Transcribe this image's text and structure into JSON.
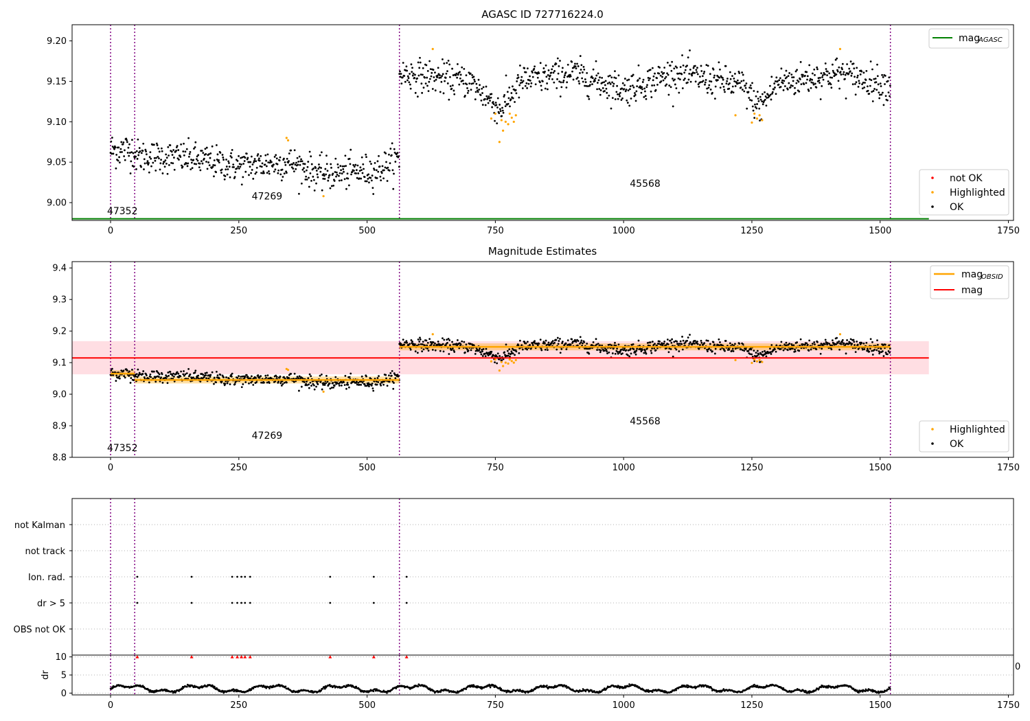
{
  "colors": {
    "ok": "#000000",
    "highlighted": "#ffa500",
    "not_ok": "#ff0000",
    "agasc_line": "#008000",
    "mag_line": "#ff0000",
    "obsid_line": "#ffa500",
    "band": "#ffb6c1",
    "obs_separator": "#800080",
    "grid": "#b0b0b0"
  },
  "chart_data": [
    {
      "type": "scatter",
      "title": "AGASC ID 727716224.0",
      "xlim": [
        -75,
        1760
      ],
      "ylim": [
        8.978,
        9.22
      ],
      "xticks": [
        0,
        250,
        500,
        750,
        1000,
        1250,
        1500,
        1750
      ],
      "yticks": [
        "9.00",
        "9.05",
        "9.10",
        "9.15",
        "9.20"
      ],
      "legend_top": [
        {
          "label_main": "mag",
          "label_sub": "AGASC",
          "color": "#008000",
          "kind": "line"
        }
      ],
      "legend_bottom": [
        {
          "label": "not OK",
          "color": "#ff0000",
          "kind": "dot"
        },
        {
          "label": "Highlighted",
          "color": "#ffa500",
          "kind": "dot"
        },
        {
          "label": "OK",
          "color": "#000000",
          "kind": "dot"
        }
      ],
      "mag_agasc": {
        "value": 8.98,
        "x_range": [
          -75,
          1595
        ]
      },
      "obs_separators": [
        0,
        47,
        563,
        1520
      ],
      "obs_labels": [
        {
          "text": "47352",
          "x": 23,
          "y": 8.99
        },
        {
          "text": "47269",
          "x": 305,
          "y": 9.008
        },
        {
          "text": "45568",
          "x": 1042,
          "y": 9.024
        }
      ],
      "segments": [
        {
          "x_range": [
            0,
            47
          ],
          "trend": [
            [
              0,
              9.065
            ],
            [
              47,
              9.065
            ]
          ],
          "noise": 0.011
        },
        {
          "x_range": [
            47,
            563
          ],
          "trend": [
            [
              47,
              9.058
            ],
            [
              150,
              9.055
            ],
            [
              250,
              9.045
            ],
            [
              350,
              9.05
            ],
            [
              410,
              9.035
            ],
            [
              520,
              9.04
            ],
            [
              563,
              9.055
            ]
          ],
          "noise": 0.01
        },
        {
          "x_range": [
            563,
            1520
          ],
          "trend": [
            [
              563,
              9.16
            ],
            [
              700,
              9.15
            ],
            [
              760,
              9.115
            ],
            [
              800,
              9.15
            ],
            [
              900,
              9.16
            ],
            [
              1000,
              9.14
            ],
            [
              1100,
              9.16
            ],
            [
              1230,
              9.145
            ],
            [
              1265,
              9.118
            ],
            [
              1300,
              9.148
            ],
            [
              1420,
              9.16
            ],
            [
              1520,
              9.145
            ]
          ],
          "noise": 0.01
        }
      ],
      "highlighted_points": [
        [
          415,
          9.008
        ],
        [
          343,
          9.08
        ],
        [
          346,
          9.077
        ],
        [
          628,
          9.19
        ],
        [
          742,
          9.104
        ],
        [
          750,
          9.11
        ],
        [
          758,
          9.075
        ],
        [
          762,
          9.102
        ],
        [
          765,
          9.089
        ],
        [
          770,
          9.1
        ],
        [
          775,
          9.097
        ],
        [
          778,
          9.11
        ],
        [
          782,
          9.105
        ],
        [
          786,
          9.1
        ],
        [
          790,
          9.108
        ],
        [
          1218,
          9.108
        ],
        [
          1250,
          9.099
        ],
        [
          1255,
          9.11
        ],
        [
          1260,
          9.104
        ],
        [
          1265,
          9.108
        ],
        [
          1270,
          9.102
        ],
        [
          1422,
          9.19
        ]
      ]
    },
    {
      "type": "scatter",
      "title": "Magnitude Estimates",
      "xlim": [
        -75,
        1760
      ],
      "ylim": [
        8.8,
        9.42
      ],
      "xticks": [
        0,
        250,
        500,
        750,
        1000,
        1250,
        1500,
        1750
      ],
      "yticks": [
        "8.8",
        "8.9",
        "9.0",
        "9.1",
        "9.2",
        "9.3",
        "9.4"
      ],
      "legend_top": [
        {
          "label_main": "mag",
          "label_sub": "OBSID",
          "color": "#ffa500",
          "kind": "line"
        },
        {
          "label_main": "mag",
          "label_sub": "",
          "color": "#ff0000",
          "kind": "line"
        }
      ],
      "legend_bottom": [
        {
          "label": "Highlighted",
          "color": "#ffa500",
          "kind": "dot"
        },
        {
          "label": "OK",
          "color": "#000000",
          "kind": "dot"
        }
      ],
      "mag": {
        "value": 9.115,
        "band": [
          9.063,
          9.168
        ],
        "x_range": [
          -75,
          1595
        ]
      },
      "mag_obsid": [
        {
          "x_range": [
            0,
            47
          ],
          "value": 9.065
        },
        {
          "x_range": [
            47,
            563
          ],
          "value": 9.045
        },
        {
          "x_range": [
            563,
            1520
          ],
          "value": 9.15
        }
      ],
      "obs_separators": [
        0,
        47,
        563,
        1520
      ],
      "obs_labels": [
        {
          "text": "47352",
          "x": 23,
          "y": 8.83
        },
        {
          "text": "47269",
          "x": 305,
          "y": 8.87
        },
        {
          "text": "45568",
          "x": 1042,
          "y": 8.915
        }
      ]
    },
    {
      "type": "scatter",
      "title": "",
      "xlim": [
        -75,
        1760
      ],
      "categories": [
        "not Kalman",
        "not track",
        "Ion. rad.",
        "dr > 5",
        "OBS not OK"
      ],
      "flag_points": {
        "Ion. rad.": [
          52,
          158,
          237,
          247,
          255,
          262,
          272,
          428,
          513,
          577
        ],
        "dr > 5": [
          52,
          158,
          237,
          247,
          255,
          262,
          272,
          428,
          513,
          577
        ]
      },
      "obs_separators": [
        0,
        47,
        563,
        1520
      ]
    },
    {
      "type": "line",
      "title": "",
      "xlabel": "",
      "ylabel": "dr",
      "xlim": [
        -75,
        1760
      ],
      "ylim": [
        -0.5,
        10.5
      ],
      "xticks": [
        0,
        250,
        500,
        750,
        1000,
        1250,
        1500,
        1750
      ],
      "yticks": [
        "0",
        "5",
        "10"
      ],
      "clipped_marker_x": [
        52,
        158,
        237,
        247,
        255,
        262,
        272,
        428,
        513,
        577
      ],
      "clipped_value": 10,
      "obs_separators": [
        0,
        47,
        563,
        1520
      ],
      "stray_tick_text": "0"
    }
  ]
}
